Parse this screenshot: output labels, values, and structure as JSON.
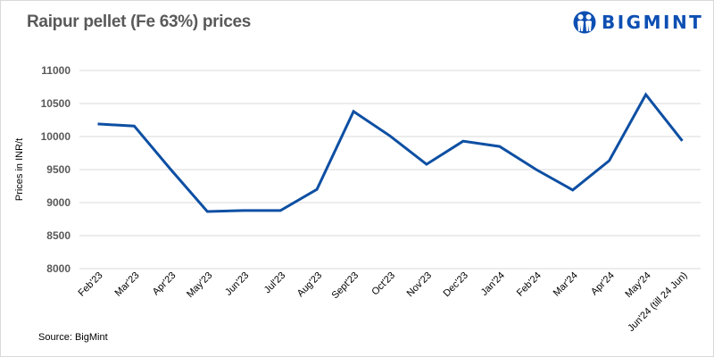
{
  "header": {
    "title": "Raipur pellet (Fe 63%) prices",
    "logo_text": "BIGMINT",
    "logo_icon": "bigmint-people-icon"
  },
  "footer": {
    "source": "Source: BigMint"
  },
  "colors": {
    "line": "#0d4fa3",
    "grid": "#d9d9d9",
    "title": "#595959",
    "brand": "#0d4fb3"
  },
  "chart_data": {
    "type": "line",
    "title": "Raipur pellet (Fe 63%) prices",
    "xlabel": "",
    "ylabel": "Prices in INR/t",
    "ylim": [
      8000,
      11000
    ],
    "yticks": [
      8000,
      8500,
      9000,
      9500,
      10000,
      10500,
      11000
    ],
    "grid": true,
    "legend": null,
    "categories": [
      "Feb'23",
      "Mar'23",
      "Apr'23",
      "May'23",
      "Jun'23",
      "Jul'23",
      "Aug'23",
      "Sept'23",
      "Oct'23",
      "Nov'23",
      "Dec'23",
      "Jan'24",
      "Feb'24",
      "Mar'24",
      "Apr'24",
      "May'24",
      "Jun'24 (till 24 Jun)"
    ],
    "series": [
      {
        "name": "Raipur pellet (Fe 63%)",
        "values": [
          10190,
          10160,
          9500,
          8865,
          8880,
          8880,
          9200,
          10380,
          10010,
          9580,
          9930,
          9850,
          9500,
          9190,
          9635,
          10635,
          9935
        ]
      }
    ],
    "annotations": [
      "Source: BigMint"
    ]
  }
}
